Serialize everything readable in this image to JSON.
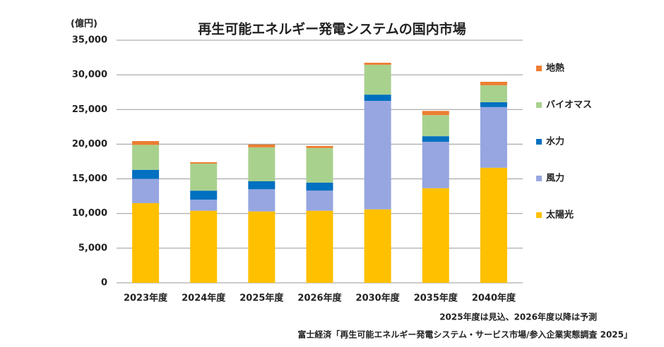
{
  "chart_data": {
    "type": "stacked_bar",
    "title": "再生可能エネルギー発電システムの国内市場",
    "y_label": "(億円)",
    "categories": [
      "2023年度",
      "2024年度",
      "2025年度",
      "2026年度",
      "2030年度",
      "2035年度",
      "2040年度"
    ],
    "series": [
      {
        "name": "太陽光",
        "color": "#ffc000",
        "values": [
          11500,
          10400,
          10300,
          10400,
          10600,
          13650,
          16600
        ]
      },
      {
        "name": "風力",
        "color": "#97a6e0",
        "values": [
          3500,
          1600,
          3200,
          2900,
          15650,
          6700,
          8750
        ]
      },
      {
        "name": "水力",
        "color": "#0070c0",
        "values": [
          1300,
          1300,
          1150,
          1150,
          900,
          800,
          700
        ]
      },
      {
        "name": "バイオマス",
        "color": "#a9d18e",
        "values": [
          3600,
          3900,
          4900,
          5000,
          4300,
          3050,
          2450
        ]
      },
      {
        "name": "地熱",
        "color": "#ed7d31",
        "values": [
          550,
          200,
          400,
          300,
          300,
          600,
          500
        ]
      }
    ],
    "ylim": [
      0,
      35000
    ],
    "yticks": [
      0,
      {
        "value": 5000,
        "label": "5,000"
      },
      {
        "value": 10000,
        "label": "10,000"
      },
      {
        "value": 15000,
        "label": "15,000"
      },
      {
        "value": 20000,
        "label": "20,000"
      },
      {
        "value": 25000,
        "label": "25,000"
      },
      {
        "value": 30000,
        "label": "30,000"
      },
      {
        "value": 35000,
        "label": "35,000"
      }
    ],
    "grid": true,
    "legend": "right",
    "note": "2025年度は見込、2026年度以降は予測",
    "source": "富士経済「再生可能エネルギー発電システム・サービス市場/参入企業実態調査 2025」"
  }
}
